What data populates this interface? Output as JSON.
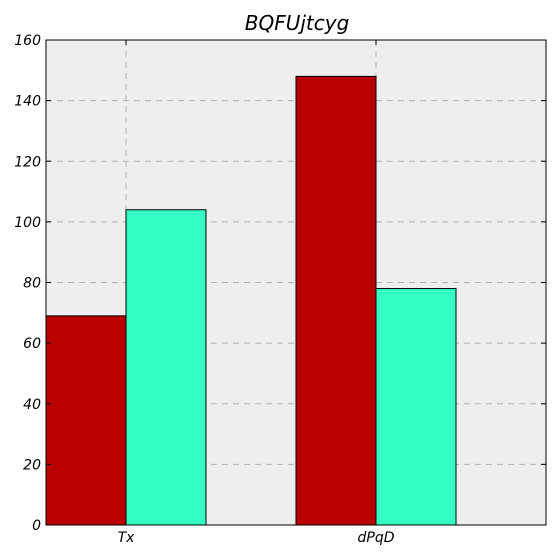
{
  "chart_data": {
    "type": "bar",
    "title": "BQFUjtcyg",
    "xlabel": "",
    "ylabel": "",
    "categories": [
      "Tx",
      "dPqD"
    ],
    "series": [
      {
        "values": [
          69,
          148
        ],
        "color": "#bb0000"
      },
      {
        "values": [
          104,
          78
        ],
        "color": "#33ffc4"
      }
    ],
    "ylim": [
      0,
      160
    ],
    "yticks": [
      0,
      20,
      40,
      60,
      80,
      100,
      120,
      140,
      160
    ],
    "grid": true,
    "background": "#eeeeee"
  }
}
